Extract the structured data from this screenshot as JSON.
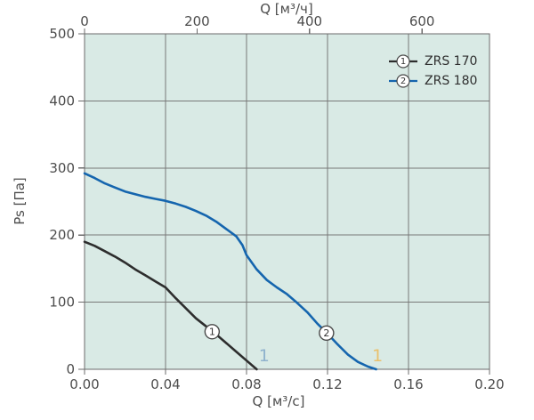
{
  "figure": {
    "background": "#ffffff",
    "plot_background": "#d9eae5",
    "grid_color": "#787878",
    "border_color": "#6b6b6b",
    "tick_label_color": "#4d4d4d",
    "marker_stroke_color": "#4a4a4a",
    "marker_text_color": "#333333"
  },
  "legend": {
    "items": [
      {
        "marker": "1",
        "label": "ZRS 170",
        "color": "#2d2d2d"
      },
      {
        "marker": "2",
        "label": "ZRS 180",
        "color": "#1565ae"
      }
    ]
  },
  "chart_data": {
    "type": "line",
    "title": "",
    "grid": true,
    "legend_position": "top-right-inside",
    "x_bottom": {
      "label": "Q [м³/с]",
      "min": 0,
      "max": 0.2,
      "tick_values": [
        0,
        0.04,
        0.08,
        0.12,
        0.16,
        0.2
      ],
      "tick_labels": [
        "0.00",
        "0.04",
        "0.08",
        "0.12",
        "0.16",
        "0.20"
      ]
    },
    "x_top": {
      "label": "Q [м³/ч]",
      "min": 0,
      "max": 720,
      "tick_values": [
        0,
        200,
        400,
        600
      ],
      "tick_labels": [
        "0",
        "200",
        "400",
        "600"
      ]
    },
    "y": {
      "label": "Ps [Па]",
      "min": 0,
      "max": 500,
      "tick_values": [
        0,
        100,
        200,
        300,
        400,
        500
      ],
      "tick_labels": [
        "0",
        "100",
        "200",
        "300",
        "400",
        "500"
      ]
    },
    "series": [
      {
        "name": "ZRS 170",
        "marker": "1",
        "color": "#2d2d2d",
        "points": [
          [
            0,
            190
          ],
          [
            0.005,
            184
          ],
          [
            0.01,
            176
          ],
          [
            0.015,
            168
          ],
          [
            0.02,
            159
          ],
          [
            0.025,
            149
          ],
          [
            0.03,
            140
          ],
          [
            0.035,
            131
          ],
          [
            0.04,
            122
          ],
          [
            0.045,
            106
          ],
          [
            0.05,
            91
          ],
          [
            0.055,
            76
          ],
          [
            0.06,
            64
          ],
          [
            0.065,
            52
          ],
          [
            0.07,
            39
          ],
          [
            0.075,
            26
          ],
          [
            0.08,
            13
          ],
          [
            0.085,
            0
          ]
        ]
      },
      {
        "name": "ZRS 180",
        "marker": "2",
        "color": "#1565ae",
        "points": [
          [
            0,
            292
          ],
          [
            0.005,
            285
          ],
          [
            0.01,
            277
          ],
          [
            0.015,
            271
          ],
          [
            0.02,
            265
          ],
          [
            0.025,
            261
          ],
          [
            0.03,
            257
          ],
          [
            0.035,
            254
          ],
          [
            0.04,
            251
          ],
          [
            0.045,
            247
          ],
          [
            0.05,
            242
          ],
          [
            0.055,
            236
          ],
          [
            0.06,
            229
          ],
          [
            0.065,
            220
          ],
          [
            0.07,
            209
          ],
          [
            0.075,
            198
          ],
          [
            0.078,
            185
          ],
          [
            0.08,
            170
          ],
          [
            0.085,
            149
          ],
          [
            0.09,
            133
          ],
          [
            0.095,
            122
          ],
          [
            0.1,
            112
          ],
          [
            0.105,
            99
          ],
          [
            0.11,
            85
          ],
          [
            0.115,
            68
          ],
          [
            0.12,
            53
          ],
          [
            0.125,
            37
          ],
          [
            0.13,
            22
          ],
          [
            0.135,
            11
          ],
          [
            0.14,
            4
          ],
          [
            0.144,
            0
          ]
        ]
      }
    ],
    "curve_markers": [
      {
        "label": "1",
        "series": "ZRS 170",
        "x": 0.063,
        "y": 56
      },
      {
        "label": "2",
        "series": "ZRS 180",
        "x": 0.1195,
        "y": 54
      }
    ],
    "annotations": [
      {
        "text": "1",
        "x": 0.0887,
        "y": 20,
        "color": "#8fb2cd"
      },
      {
        "text": "1",
        "x": 0.1447,
        "y": 20,
        "color": "#eac06c"
      }
    ]
  }
}
